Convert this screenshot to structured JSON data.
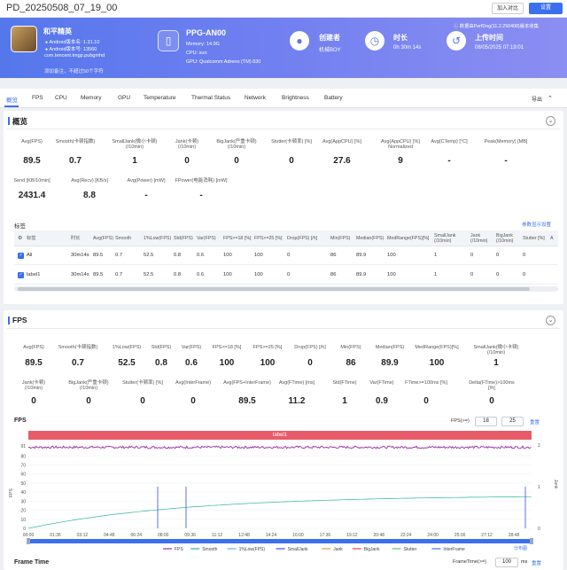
{
  "top_bar": {
    "title": "PD_20250508_07_19_00",
    "add_compare": "加入对比",
    "settings": "设置"
  },
  "banner": {
    "app_name": "和平精英",
    "android_version": "Android版本名: 1.31.10",
    "android_code": "Android版本号: 13560",
    "package": "com.tencent.tmgp.pubgmhd",
    "note_placeholder": "添加备注，不超过50个字符",
    "data_source": "数据由PerfDog(11.2.250408)版本收集",
    "device_name": "PPG-AN00",
    "memory": "Memory: 14.9G",
    "cpu": "CPU: sun",
    "gpu": "GPU: Qualcomm Adreno (TM) 830",
    "creator_label": "创建者",
    "creator_value": "机械BOY",
    "duration_label": "时长",
    "duration_value": "0h 30m 14s",
    "upload_label": "上传时间",
    "upload_value": "08/05/2025 07:19:01"
  },
  "tabs": [
    "概览",
    "FPS",
    "CPU",
    "Memory",
    "GPU",
    "Temperature",
    "Thermal Status",
    "Network",
    "Brightness",
    "Battery"
  ],
  "export_label": "导出",
  "overview": {
    "title": "概览",
    "metrics_row1": [
      {
        "label": "Avg(FPS)",
        "value": "89.5"
      },
      {
        "label": "Smooth(卡顿指数)",
        "value": "0.7"
      },
      {
        "label": "SmallJank(微小卡顿)\n(/10min)",
        "value": "1"
      },
      {
        "label": "Jank(卡顿)\n(/10min)",
        "value": "0"
      },
      {
        "label": "BigJank(严重卡顿)\n(/10min)",
        "value": "0"
      },
      {
        "label": "Stutter(卡顿率) [%]",
        "value": "0"
      },
      {
        "label": "Avg(AppCPU) [%]",
        "value": "27.6"
      },
      {
        "label": "Avg(AppCPU) [%]\nNormalized",
        "value": "9"
      },
      {
        "label": "Avg(CTemp) [°C]",
        "value": "-"
      },
      {
        "label": "Peak(Memory) [MB]",
        "value": "-"
      }
    ],
    "metrics_row2": [
      {
        "label": "Send [KB/10min]",
        "value": "2431.4"
      },
      {
        "label": "Avg(Recv) [KB/s]",
        "value": "8.8"
      },
      {
        "label": "Avg(Power) [mW]",
        "value": "-"
      },
      {
        "label": "FPower(电能消耗) [mW]",
        "value": "-"
      }
    ],
    "label_title": "标签",
    "param_settings": "参数显示设置",
    "columns": [
      "标签",
      "时长",
      "Avg(FPS)",
      "Smooth",
      "1%Low(FPS)",
      "Std(FPS)",
      "Var(FPS)",
      "FPS>=18 [%]",
      "FPS>=25 [%]",
      "Drop(FPS) [/h]",
      "Min(FPS)",
      "Median(FPS)",
      "MedRange(FPS)[%]",
      "SmallJank\n(/10min)",
      "Jank\n(/10min)",
      "BigJank\n(/10min)",
      "Stutter [%]",
      "A"
    ],
    "rows": [
      [
        "All",
        "30m14s",
        "89.5",
        "0.7",
        "52.5",
        "0.8",
        "0.6",
        "100",
        "100",
        "0",
        "86",
        "89.9",
        "100",
        "1",
        "0",
        "0",
        "0"
      ],
      [
        "label1",
        "30m14s",
        "89.5",
        "0.7",
        "52.5",
        "0.8",
        "0.6",
        "100",
        "100",
        "0",
        "86",
        "89.9",
        "100",
        "1",
        "0",
        "0",
        "0"
      ]
    ]
  },
  "fps_section": {
    "title": "FPS",
    "metrics_row1": [
      {
        "label": "Avg(FPS)",
        "value": "89.5"
      },
      {
        "label": "Smooth(卡顿指数)",
        "value": "0.7"
      },
      {
        "label": "1%Low(FPS)",
        "value": "52.5"
      },
      {
        "label": "Std(FPS)",
        "value": "0.8"
      },
      {
        "label": "Var(FPS)",
        "value": "0.6"
      },
      {
        "label": "FPS>=18 [%]",
        "value": "100"
      },
      {
        "label": "FPS>=25 [%]",
        "value": "100"
      },
      {
        "label": "Drop(FPS) [/h]",
        "value": "0"
      },
      {
        "label": "Min(FPS)",
        "value": "86"
      },
      {
        "label": "Median(FPS)",
        "value": "89.9"
      },
      {
        "label": "MedRange(FPS)[%]",
        "value": "100"
      },
      {
        "label": "SmallJank(微小卡顿)\n(/10min)",
        "value": "1"
      }
    ],
    "metrics_row2": [
      {
        "label": "Jank(卡顿)\n(/10min)",
        "value": "0"
      },
      {
        "label": "BigJank(严重卡顿)\n(/10min)",
        "value": "0"
      },
      {
        "label": "Stutter(卡顿率) [%]",
        "value": "0"
      },
      {
        "label": "Avg(InterFrame)",
        "value": "0"
      },
      {
        "label": "Avg(FPS+InterFrame)",
        "value": "89.5"
      },
      {
        "label": "Avg(FTime) [ms]",
        "value": "11.2"
      },
      {
        "label": "Std(FTime)",
        "value": "1"
      },
      {
        "label": "Var(FTime)",
        "value": "0.9"
      },
      {
        "label": "FTime>=100ms [%]",
        "value": "0"
      },
      {
        "label": "Delta(FTime)>100ms [/h]",
        "value": "0"
      }
    ],
    "chart_title": "FPS",
    "fps_filter_label": "FPS(>=)",
    "fps_filter_1": "18",
    "fps_filter_2": "25",
    "reset_label": "重置",
    "label_bar": "label1",
    "distribution_link": "分布图",
    "frametime_title": "Frame Time",
    "frametime_filter_label": "FrameTime(>=)",
    "frametime_value": "100",
    "frametime_unit": "ms"
  },
  "chart_data": {
    "type": "line",
    "title": "FPS",
    "ylabel": "FPS",
    "y2label": "Jank",
    "ylim": [
      0,
      92
    ],
    "y2lim": [
      0,
      2
    ],
    "yticks": [
      0,
      10,
      20,
      30,
      40,
      50,
      60,
      70,
      80,
      91
    ],
    "y2ticks": [
      0,
      1,
      2
    ],
    "x_ticks": [
      "00:00",
      "01:36",
      "03:12",
      "04:48",
      "06:24",
      "08:00",
      "09:36",
      "11:12",
      "12:48",
      "14:24",
      "16:00",
      "17:36",
      "19:12",
      "20:48",
      "22:24",
      "24:00",
      "25:36",
      "27:12",
      "28:48"
    ],
    "series": [
      {
        "name": "FPS",
        "color": "#9c2aa0",
        "values_summary": {
          "avg": 89.5,
          "min": 86,
          "max": 91
        }
      },
      {
        "name": "Smooth",
        "color": "#2fb5a0"
      },
      {
        "name": "1%Low(FPS)",
        "color": "#6bb0e8"
      },
      {
        "name": "SmallJank",
        "color": "#3b4fd8",
        "events_time": [
          "06:24",
          "08:00"
        ]
      },
      {
        "name": "Jank",
        "color": "#e89a3a"
      },
      {
        "name": "BigJank",
        "color": "#e04848"
      },
      {
        "name": "Stutter",
        "color": "#6bc46b"
      },
      {
        "name": "InterFrame",
        "color": "#3b6ff0"
      }
    ],
    "smooth_curve": {
      "start": 0,
      "end": 35
    }
  }
}
